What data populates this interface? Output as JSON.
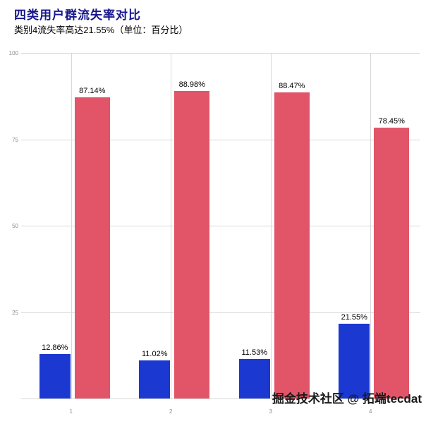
{
  "header": {
    "title": "四类用户群流失率对比",
    "subtitle": "类别4流失率高达21.55%（单位：百分比）"
  },
  "watermark": "掘金技术社区 @ 拓端tecdat",
  "colors": {
    "bar_blue": "#1b38d1",
    "bar_red": "#e25568",
    "title": "#16168c",
    "grid": "#d8d8d8",
    "axis_text": "#8a8a94",
    "value_text": "#000000"
  },
  "chart_data": {
    "type": "bar",
    "title": "四类用户群流失率对比",
    "subtitle": "类别4流失率高达21.55%（单位：百分比）",
    "categories": [
      "1",
      "2",
      "3",
      "4"
    ],
    "series": [
      {
        "name": "blue-bar",
        "color_key": "bar_blue",
        "values": [
          12.86,
          11.02,
          11.53,
          21.55
        ],
        "labels": [
          "12.86%",
          "11.02%",
          "11.53%",
          "21.55%"
        ]
      },
      {
        "name": "red-bar",
        "color_key": "bar_red",
        "values": [
          87.14,
          88.98,
          88.47,
          78.45
        ],
        "labels": [
          "87.14%",
          "88.98%",
          "88.47%",
          "78.45%"
        ]
      }
    ],
    "ylim": [
      0,
      100
    ],
    "yticks": [
      25,
      50,
      75,
      100
    ],
    "grid": true,
    "legend_position": "none",
    "unit": "百分比"
  }
}
